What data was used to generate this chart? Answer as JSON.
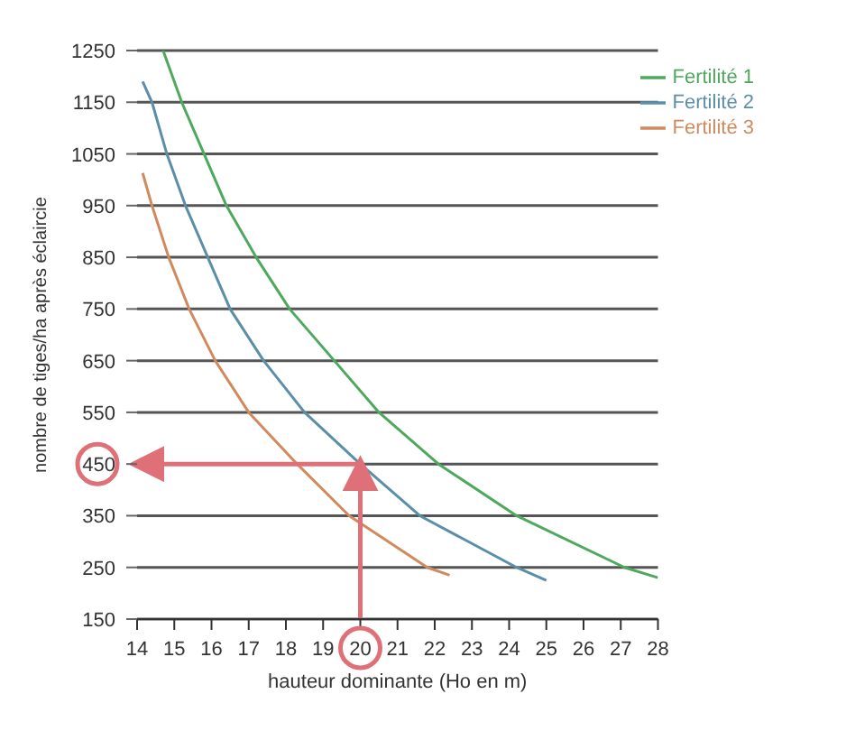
{
  "chart_data": {
    "type": "line",
    "xlabel": "hauteur dominante (Ho en m)",
    "ylabel": "nombre de tiges/ha après éclaircie",
    "xlim": [
      14,
      28
    ],
    "xticks": [
      14,
      15,
      16,
      17,
      18,
      19,
      20,
      21,
      22,
      23,
      24,
      25,
      26,
      27,
      28
    ],
    "ylim": [
      150,
      1250
    ],
    "yticks": [
      150,
      250,
      350,
      450,
      550,
      650,
      750,
      850,
      950,
      1050,
      1150,
      1250
    ],
    "grid": "y",
    "legend": "top right",
    "marker": "none",
    "line_style": "solid",
    "series": [
      {
        "name": "Fertilité 1",
        "color": "#4ea85e",
        "x": [
          14.7,
          15.2,
          15.8,
          16.4,
          17.2,
          18.1,
          19.3,
          20.5,
          22.1,
          24.2,
          27.1,
          28
        ],
        "values": [
          1250,
          1150,
          1050,
          950,
          850,
          750,
          650,
          550,
          450,
          350,
          250,
          230
        ]
      },
      {
        "name": "Fertilité 2",
        "color": "#5b8fa8",
        "x": [
          14.15,
          14.4,
          14.8,
          15.3,
          15.9,
          16.5,
          17.4,
          18.5,
          20,
          21.6,
          24.2,
          25
        ],
        "values": [
          1190,
          1150,
          1050,
          950,
          850,
          750,
          650,
          550,
          450,
          350,
          250,
          225
        ]
      },
      {
        "name": "Fertilité 3",
        "color": "#d08a5e",
        "x": [
          14.15,
          14.4,
          14.85,
          15.4,
          16.1,
          17,
          18.3,
          19.7,
          21.8,
          22.4
        ],
        "values": [
          1013,
          950,
          850,
          750,
          650,
          550,
          450,
          350,
          250,
          235
        ]
      }
    ],
    "ref_lines": [
      {
        "axis": "x",
        "value": 20,
        "color": "#e07078"
      },
      {
        "axis": "y",
        "value": 450,
        "color": "#e07078"
      }
    ]
  }
}
